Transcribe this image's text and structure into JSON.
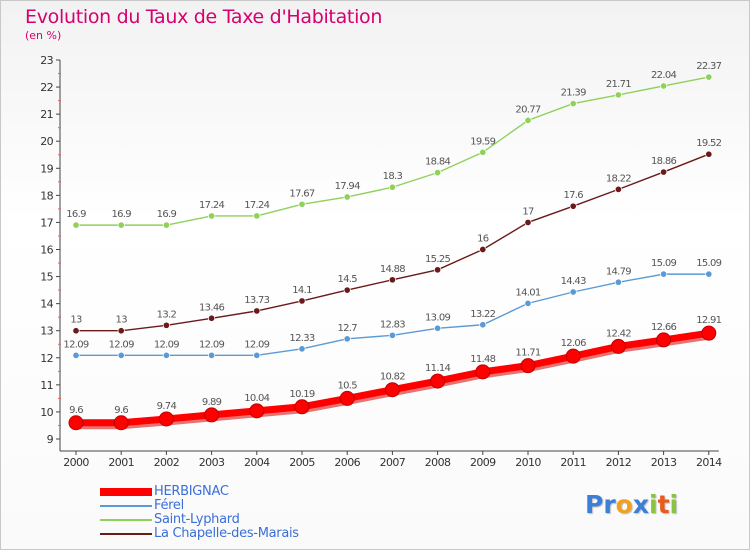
{
  "header": {
    "title": "Evolution du Taux de Taxe d'Habitation",
    "unit": "(en %)"
  },
  "logo": {
    "text": "Proxiti",
    "letters": [
      {
        "ch": "P",
        "color": "#3b7fd6"
      },
      {
        "ch": "r",
        "color": "#3b7fd6"
      },
      {
        "ch": "o",
        "color": "#f0a020"
      },
      {
        "ch": "x",
        "color": "#3b7fd6"
      },
      {
        "ch": "i",
        "color": "#8ac43f"
      },
      {
        "ch": "t",
        "color": "#e85a1e"
      },
      {
        "ch": "i",
        "color": "#8ac43f"
      }
    ]
  },
  "chart_data": {
    "type": "line",
    "title": "Evolution du Taux de Taxe d'Habitation",
    "ylabel": "(en %)",
    "xlabel": "",
    "x": [
      "2000",
      "2001",
      "2002",
      "2003",
      "2004",
      "2005",
      "2006",
      "2007",
      "2008",
      "2009",
      "2010",
      "2011",
      "2012",
      "2013",
      "2014"
    ],
    "ylim": [
      9,
      23
    ],
    "yticks": [
      9,
      10,
      11,
      12,
      13,
      14,
      15,
      16,
      17,
      18,
      19,
      20,
      21,
      22,
      23
    ],
    "grid": false,
    "legend_position": "bottom-left",
    "series": [
      {
        "name": "HERBIGNAC",
        "color": "#ff0000",
        "values": [
          9.6,
          9.6,
          9.74,
          9.89,
          10.04,
          10.19,
          10.5,
          10.82,
          11.14,
          11.48,
          11.71,
          12.06,
          12.42,
          12.66,
          12.91
        ],
        "labels": [
          "9.6",
          "9.6",
          "9.74",
          "9.89",
          "10.04",
          "10.19",
          "10.5",
          "10.82",
          "11.14",
          "11.48",
          "11.71",
          "12.06",
          "12.42",
          "12.66",
          "12.91"
        ]
      },
      {
        "name": "Férel",
        "color": "#5b9bd5",
        "values": [
          12.09,
          12.09,
          12.09,
          12.09,
          12.09,
          12.33,
          12.7,
          12.83,
          13.09,
          13.22,
          14.01,
          14.43,
          14.79,
          15.09,
          15.09
        ],
        "labels": [
          "12.09",
          "12.09",
          "12.09",
          "12.09",
          "12.09",
          "12.33",
          "12.7",
          "12.83",
          "13.09",
          "13.22",
          "14.01",
          "14.43",
          "14.79",
          "15.09",
          "15.09"
        ]
      },
      {
        "name": "Saint-Lyphard",
        "color": "#8fd15a",
        "values": [
          16.9,
          16.9,
          16.9,
          17.24,
          17.24,
          17.67,
          17.94,
          18.3,
          18.84,
          19.59,
          20.77,
          21.39,
          21.71,
          22.04,
          22.37
        ],
        "labels": [
          "16.9",
          "16.9",
          "16.9",
          "17.24",
          "17.24",
          "17.67",
          "17.94",
          "18.3",
          "18.84",
          "19.59",
          "20.77",
          "21.39",
          "21.71",
          "22.04",
          "22.37"
        ]
      },
      {
        "name": "La Chapelle-des-Marais",
        "color": "#6b1a1a",
        "values": [
          13,
          13,
          13.2,
          13.46,
          13.73,
          14.1,
          14.5,
          14.88,
          15.25,
          16,
          17,
          17.6,
          18.22,
          18.86,
          19.52
        ],
        "labels": [
          "13",
          "13",
          "13.2",
          "13.46",
          "13.73",
          "14.1",
          "14.5",
          "14.88",
          "15.25",
          "16",
          "17",
          "17.6",
          "18.22",
          "18.86",
          "19.52"
        ]
      }
    ]
  }
}
